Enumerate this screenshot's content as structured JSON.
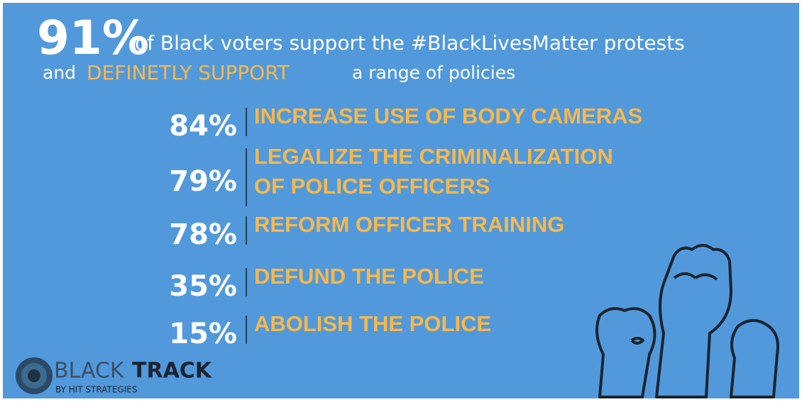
{
  "headline": {
    "stat": "91%",
    "text": "of Black voters support the #BlackLivesMatter protests",
    "line2_start": "and",
    "line2_highlight": "DEFINETLY SUPPORT",
    "line2_end": "a range of policies"
  },
  "items": [
    {
      "value": "84%",
      "lines": [
        "INCREASE USE OF BODY CAMERAS"
      ]
    },
    {
      "value": "79%",
      "lines": [
        "LEGALIZE THE CRIMINALIZATION",
        "OF POLICE OFFICERS"
      ]
    },
    {
      "value": "78%",
      "lines": [
        "REFORM OFFICER TRAINING"
      ]
    },
    {
      "value": "35%",
      "lines": [
        "DEFUND THE POLICE"
      ]
    },
    {
      "value": "15%",
      "lines": [
        "ABOLISH THE POLICE"
      ]
    }
  ],
  "logo": {
    "part1": "BLACK",
    "part2": "TRACK",
    "tagline": "BY HIT STRATEGIES"
  }
}
